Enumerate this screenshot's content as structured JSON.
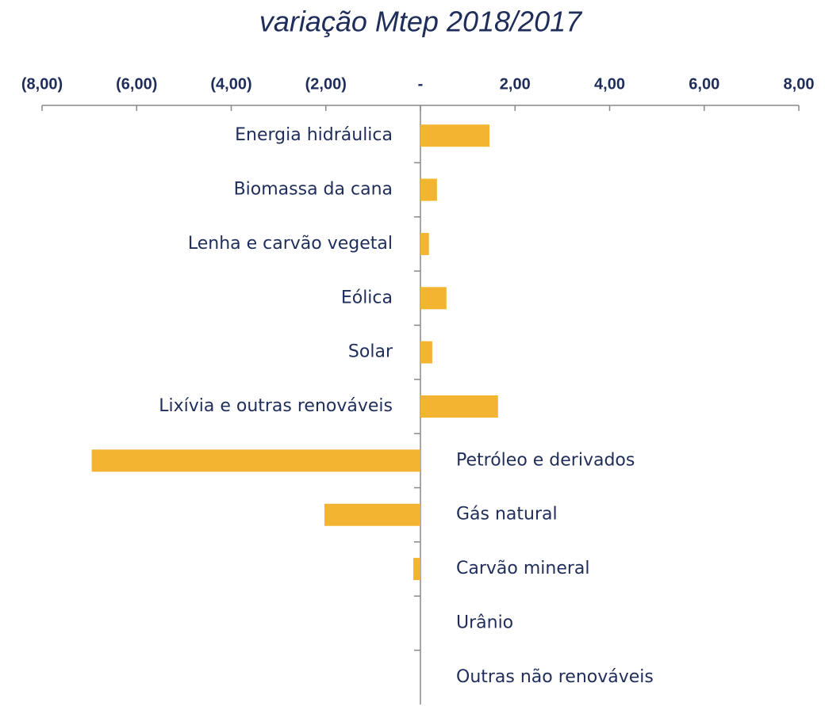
{
  "chart_data": {
    "type": "hbar",
    "title": "variação Mtep 2018/2017",
    "categories": [
      "Energia hidráulica",
      "Biomassa da cana",
      "Lenha e carvão vegetal",
      "Eólica",
      "Solar",
      "Lixívia e outras renováveis",
      "Petróleo e derivados",
      "Gás natural",
      "Carvão mineral",
      "Urânio",
      "Outras não renováveis"
    ],
    "values": [
      1.46,
      0.35,
      0.18,
      0.55,
      0.25,
      1.64,
      -6.95,
      -2.03,
      -0.15,
      0,
      0
    ],
    "color": "#f2b431",
    "xlim": [
      -8,
      8
    ],
    "xticks": [
      {
        "value": -8,
        "label": "(8,00)"
      },
      {
        "value": -6,
        "label": "(6,00)"
      },
      {
        "value": -4,
        "label": "(4,00)"
      },
      {
        "value": -2,
        "label": "(2,00)"
      },
      {
        "value": 0,
        "label": "-"
      },
      {
        "value": 2,
        "label": "2,00"
      },
      {
        "value": 4,
        "label": "4,00"
      },
      {
        "value": 6,
        "label": "6,00"
      },
      {
        "value": 8,
        "label": "8,00"
      }
    ]
  }
}
